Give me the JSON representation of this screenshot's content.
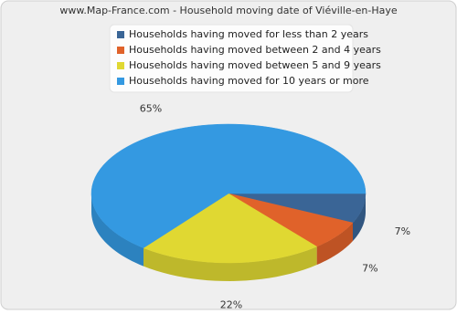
{
  "chart_data": {
    "type": "pie",
    "title": "www.Map-France.com - Household moving date of Viéville-en-Haye",
    "categories": [
      "Households having moved for less than 2 years",
      "Households having moved between 2 and 4 years",
      "Households having moved between 5 and 9 years",
      "Households having moved for 10 years or more"
    ],
    "values": [
      7,
      7,
      22,
      65
    ],
    "value_labels": [
      "7%",
      "7%",
      "22%",
      "65%"
    ],
    "colors": [
      "#3a6596",
      "#e0622a",
      "#e0d832",
      "#3499e1"
    ]
  }
}
